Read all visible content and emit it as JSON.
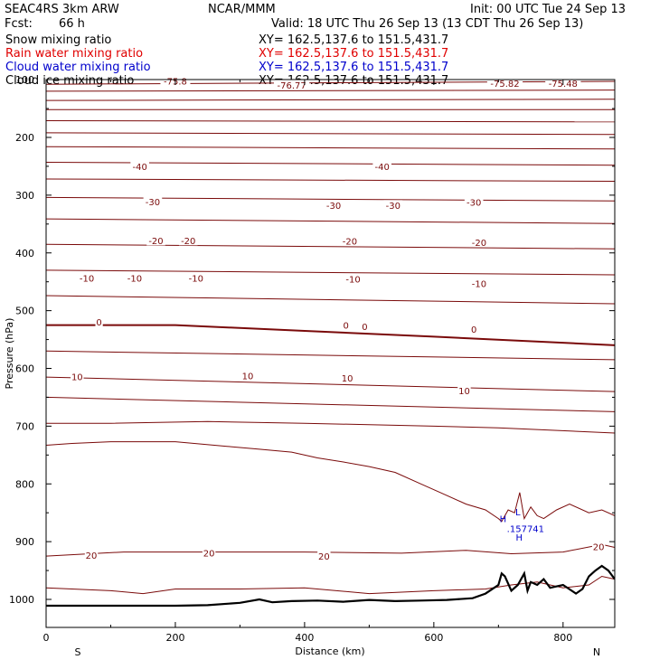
{
  "header": {
    "model": "SEAC4RS  3km ARW",
    "source": "NCAR/MMM",
    "init": "Init: 00 UTC Tue 24 Sep 13",
    "fcst_label": "Fcst:",
    "fcst_value": "66 h",
    "valid": "Valid: 18 UTC Thu 26 Sep 13 (13 CDT Thu 26 Sep 13)"
  },
  "fields": [
    {
      "name": "Snow mixing ratio",
      "xy": "XY= 162.5,137.6 to 151.5,431.7",
      "color": "#000000"
    },
    {
      "name": "Rain water mixing ratio",
      "xy": "XY= 162.5,137.6 to 151.5,431.7",
      "color": "#e00000"
    },
    {
      "name": "Cloud water mixing ratio",
      "xy": "XY= 162.5,137.6 to 151.5,431.7",
      "color": "#0000cc"
    },
    {
      "name": "Cloud ice mixing ratio",
      "xy": "XY= 162.5,137.6 to 151.5,431.7",
      "color": "#000000"
    }
  ],
  "chart_data": {
    "type": "line",
    "xlabel": "Distance (km)",
    "ylabel": "Pressure (hPa)",
    "xlim": [
      0,
      880
    ],
    "ylim": [
      1045,
      100
    ],
    "x_ticks": [
      0,
      200,
      400,
      600,
      800
    ],
    "y_ticks": [
      200,
      300,
      400,
      500,
      600,
      700,
      800,
      900,
      1000
    ],
    "y_tick_labels": [
      "200",
      "300",
      "400",
      "500",
      "600",
      "700",
      "800",
      "900",
      "1000"
    ],
    "top_tick_label": "100",
    "endpoint_labels": {
      "left": "S",
      "right": "N"
    },
    "contour_color": "#7a0a0a",
    "zero_line_color": "#7a0a0a",
    "terrain_color": "#000000",
    "cloud_color": "#0000cc",
    "isotherms": [
      {
        "x": [
          0,
          880
        ],
        "p": [
          108,
          103
        ]
      },
      {
        "x": [
          0,
          880
        ],
        "p": [
          120,
          118
        ]
      },
      {
        "x": [
          0,
          880
        ],
        "p": [
          136,
          134
        ]
      },
      {
        "x": [
          0,
          880
        ],
        "p": [
          152,
          152
        ]
      },
      {
        "x": [
          0,
          880
        ],
        "p": [
          171,
          173
        ]
      },
      {
        "x": [
          0,
          880
        ],
        "p": [
          192,
          195
        ]
      },
      {
        "x": [
          0,
          880
        ],
        "p": [
          216,
          220
        ]
      },
      {
        "x": [
          0,
          880
        ],
        "p": [
          243,
          248
        ]
      },
      {
        "x": [
          0,
          880
        ],
        "p": [
          272,
          276
        ]
      },
      {
        "x": [
          0,
          880
        ],
        "p": [
          304,
          310
        ]
      },
      {
        "x": [
          0,
          880
        ],
        "p": [
          341,
          349
        ]
      },
      {
        "x": [
          0,
          880
        ],
        "p": [
          385,
          393
        ]
      },
      {
        "x": [
          0,
          880
        ],
        "p": [
          430,
          438
        ]
      },
      {
        "x": [
          0,
          880
        ],
        "p": [
          474,
          488
        ]
      },
      {
        "x": [
          0,
          880
        ],
        "p": [
          570,
          585
        ]
      },
      {
        "x": [
          0,
          880
        ],
        "p": [
          615,
          640
        ]
      },
      {
        "x": [
          0,
          880
        ],
        "p": [
          650,
          675
        ]
      }
    ],
    "zero_isotherm": {
      "x": [
        0,
        200,
        400,
        600,
        880
      ],
      "p": [
        525,
        525,
        535,
        545,
        560
      ]
    },
    "isotherm_700": {
      "x": [
        0,
        100,
        250,
        400,
        600,
        700,
        880
      ],
      "p": [
        695,
        695,
        692,
        695,
        700,
        703,
        712
      ]
    },
    "cloud_contour": {
      "x": [
        0,
        40,
        100,
        200,
        280,
        330,
        380,
        420,
        460,
        500,
        540,
        580,
        610,
        650,
        680,
        700,
        705,
        715,
        725,
        733,
        740,
        750,
        760,
        770,
        790,
        810,
        840,
        860,
        880
      ],
      "p": [
        733,
        730,
        727,
        727,
        735,
        740,
        745,
        755,
        762,
        770,
        780,
        800,
        815,
        835,
        845,
        860,
        865,
        845,
        850,
        815,
        860,
        840,
        855,
        860,
        845,
        835,
        850,
        845,
        855
      ]
    },
    "isotherm_20": {
      "x": [
        0,
        120,
        250,
        400,
        550,
        650,
        720,
        800,
        860,
        880
      ],
      "p": [
        925,
        918,
        918,
        918,
        920,
        915,
        921,
        918,
        905,
        910
      ]
    },
    "near_surface": {
      "x": [
        0,
        100,
        150,
        200,
        300,
        400,
        500,
        600,
        680,
        720,
        760,
        800,
        840,
        860,
        880
      ],
      "p": [
        980,
        985,
        990,
        982,
        982,
        980,
        990,
        985,
        982,
        975,
        970,
        980,
        975,
        960,
        965
      ]
    },
    "terrain": {
      "x": [
        0,
        100,
        200,
        250,
        300,
        330,
        350,
        380,
        420,
        460,
        500,
        540,
        580,
        620,
        660,
        680,
        700,
        705,
        710,
        720,
        730,
        740,
        745,
        750,
        760,
        770,
        780,
        800,
        820,
        830,
        840,
        850,
        860,
        870,
        880
      ],
      "p": [
        1011,
        1011,
        1011,
        1010,
        1006,
        1000,
        1005,
        1003,
        1002,
        1004,
        1001,
        1003,
        1002,
        1001,
        998,
        990,
        975,
        955,
        960,
        985,
        975,
        955,
        985,
        970,
        975,
        965,
        980,
        975,
        990,
        982,
        960,
        950,
        942,
        950,
        965
      ]
    },
    "contour_labels": [
      {
        "text": "-75.8",
        "x": 200,
        "p": 103
      },
      {
        "text": "-76.77",
        "x": 380,
        "p": 110
      },
      {
        "text": "-75.82",
        "x": 710,
        "p": 107
      },
      {
        "text": "-75.48",
        "x": 800,
        "p": 107
      },
      {
        "text": "-40",
        "x": 145,
        "p": 251
      },
      {
        "text": "-40",
        "x": 520,
        "p": 251
      },
      {
        "text": "-30",
        "x": 165,
        "p": 312
      },
      {
        "text": "-30",
        "x": 445,
        "p": 318
      },
      {
        "text": "-30",
        "x": 537,
        "p": 318
      },
      {
        "text": "-30",
        "x": 662,
        "p": 313
      },
      {
        "text": "-20",
        "x": 170,
        "p": 379
      },
      {
        "text": "-20",
        "x": 220,
        "p": 379
      },
      {
        "text": "-20",
        "x": 470,
        "p": 380
      },
      {
        "text": "-20",
        "x": 670,
        "p": 382
      },
      {
        "text": "-10",
        "x": 63,
        "p": 444
      },
      {
        "text": "-10",
        "x": 137,
        "p": 444
      },
      {
        "text": "-10",
        "x": 232,
        "p": 444
      },
      {
        "text": "-10",
        "x": 475,
        "p": 446
      },
      {
        "text": "-10",
        "x": 670,
        "p": 454
      },
      {
        "text": "0",
        "x": 82,
        "p": 520
      },
      {
        "text": "0",
        "x": 464,
        "p": 526
      },
      {
        "text": "0",
        "x": 493,
        "p": 528
      },
      {
        "text": "0",
        "x": 662,
        "p": 533
      },
      {
        "text": "10",
        "x": 48,
        "p": 615
      },
      {
        "text": "10",
        "x": 312,
        "p": 613
      },
      {
        "text": "10",
        "x": 466,
        "p": 617
      },
      {
        "text": "10",
        "x": 647,
        "p": 639
      },
      {
        "text": "20",
        "x": 70,
        "p": 924
      },
      {
        "text": "20",
        "x": 252,
        "p": 920
      },
      {
        "text": "20",
        "x": 430,
        "p": 926
      },
      {
        "text": "20",
        "x": 855,
        "p": 909
      }
    ],
    "cloud_labels": [
      {
        "text": "H",
        "x": 707,
        "p": 860
      },
      {
        "text": "L",
        "x": 730,
        "p": 848
      },
      {
        "text": ".157741",
        "x": 742,
        "p": 877
      },
      {
        "text": "H",
        "x": 732,
        "p": 892
      }
    ]
  }
}
